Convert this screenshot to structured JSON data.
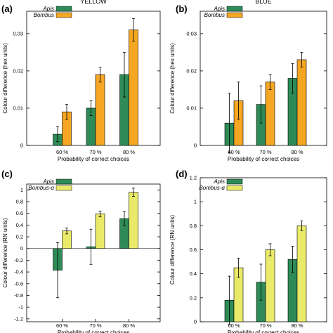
{
  "colors": {
    "apis": "#2e8b57",
    "orange": "#f5a623",
    "yellow": "#eaea6a",
    "axis": "#000000",
    "error": "#000000"
  },
  "chart_data": [
    {
      "type": "bar",
      "panel": "(a)",
      "title": "YELLOW",
      "xlabel": "Probability of correct choices",
      "ylabel": "Colour difference (hex units)",
      "categories": [
        "60 %",
        "70 %",
        "80 %"
      ],
      "ylim": [
        0,
        0.036
      ],
      "yticks": [
        0,
        0.01,
        0.02,
        0.03
      ],
      "ytick_labels": [
        "0",
        "0.01",
        "0.02",
        "0.03"
      ],
      "legend_position": "top-left",
      "series": [
        {
          "name": "Apis",
          "color_key": "apis",
          "values": [
            0.003,
            0.01,
            0.019
          ],
          "errors": [
            0.002,
            0.002,
            0.006
          ]
        },
        {
          "name": "Bombus",
          "color_key": "orange",
          "values": [
            0.009,
            0.019,
            0.031
          ],
          "errors": [
            0.002,
            0.002,
            0.003
          ]
        }
      ]
    },
    {
      "type": "bar",
      "panel": "(b)",
      "title": "BLUE",
      "xlabel": "Probability of correct choices",
      "ylabel": "Colour difference (hex units)",
      "categories": [
        "60 %",
        "70 %",
        "80 %"
      ],
      "ylim": [
        0,
        0.036
      ],
      "yticks": [
        0,
        0.01,
        0.02,
        0.03
      ],
      "ytick_labels": [
        "0",
        "0.01",
        "0.02",
        "0.03"
      ],
      "legend_position": "top-left",
      "series": [
        {
          "name": "Apis",
          "color_key": "apis",
          "values": [
            0.006,
            0.011,
            0.018
          ],
          "errors": [
            0.008,
            0.005,
            0.004
          ]
        },
        {
          "name": "Bombus",
          "color_key": "orange",
          "values": [
            0.012,
            0.017,
            0.023
          ],
          "errors": [
            0.005,
            0.002,
            0.002
          ]
        }
      ]
    },
    {
      "type": "bar",
      "panel": "(c)",
      "title": "",
      "xlabel": "Probability of correct choices",
      "ylabel": "Colour difference (RN units)",
      "categories": [
        "60 %",
        "70 %",
        "80 %"
      ],
      "ylim": [
        -1.25,
        1.1
      ],
      "yticks": [
        -1.2,
        -1,
        -0.8,
        -0.6,
        -0.4,
        -0.2,
        0,
        0.2,
        0.4,
        0.6,
        0.8,
        1
      ],
      "ytick_labels": [
        "-1.2",
        "-1",
        "-0.8",
        "-0.6",
        "-0.4",
        "-0.2",
        "0",
        "0.2",
        "0.4",
        "0.6",
        "0.8",
        "1"
      ],
      "legend_position": "top-left",
      "series": [
        {
          "name": "Apis",
          "color_key": "apis",
          "values": [
            -0.37,
            0.03,
            0.51
          ],
          "errors": [
            0.47,
            0.3,
            0.12
          ]
        },
        {
          "name": "Bombus-α",
          "color_key": "yellow",
          "values": [
            0.3,
            0.59,
            0.96
          ],
          "errors": [
            0.05,
            0.05,
            0.07
          ]
        }
      ]
    },
    {
      "type": "bar",
      "panel": "(d)",
      "title": "",
      "xlabel": "Probability of correct choices",
      "ylabel": "Colour difference (RN units)",
      "categories": [
        "60 %",
        "70 %",
        "80 %"
      ],
      "ylim": [
        0,
        1.2
      ],
      "yticks": [
        0,
        0.2,
        0.4,
        0.6,
        0.8,
        1,
        1.2
      ],
      "ytick_labels": [
        "0",
        "0.2",
        "0.4",
        "0.6",
        "0.8",
        "1",
        "1.2"
      ],
      "legend_position": "top-left",
      "series": [
        {
          "name": "Apis",
          "color_key": "apis",
          "values": [
            0.18,
            0.33,
            0.52
          ],
          "errors": [
            0.2,
            0.15,
            0.11
          ]
        },
        {
          "name": "Bombus-α",
          "color_key": "yellow",
          "values": [
            0.45,
            0.6,
            0.8
          ],
          "errors": [
            0.08,
            0.05,
            0.04
          ]
        }
      ]
    }
  ]
}
